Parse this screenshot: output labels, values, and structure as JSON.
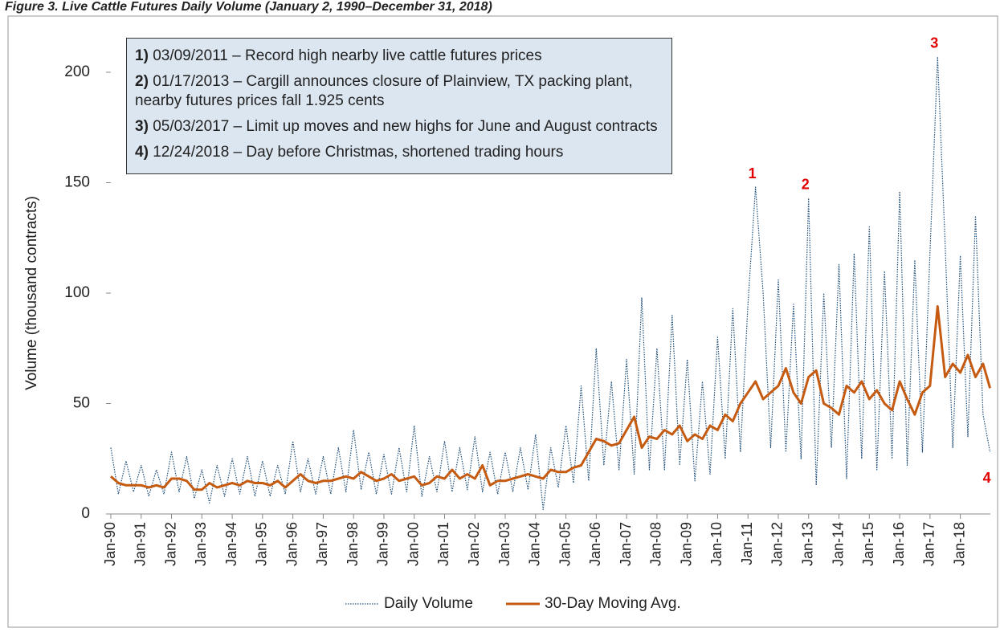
{
  "chart_data": {
    "type": "line",
    "title": "Figure 3. Live Cattle Futures Daily Volume (January 2, 1990–December 31, 2018)",
    "y_label": "Volume (thousand contracts)",
    "x": [
      1990,
      1990.25,
      1990.5,
      1990.75,
      1991,
      1991.25,
      1991.5,
      1991.75,
      1992,
      1992.25,
      1992.5,
      1992.75,
      1993,
      1993.25,
      1993.5,
      1993.75,
      1994,
      1994.25,
      1994.5,
      1994.75,
      1995,
      1995.25,
      1995.5,
      1995.75,
      1996,
      1996.25,
      1996.5,
      1996.75,
      1997,
      1997.25,
      1997.5,
      1997.75,
      1998,
      1998.25,
      1998.5,
      1998.75,
      1999,
      1999.25,
      1999.5,
      1999.75,
      2000,
      2000.25,
      2000.5,
      2000.75,
      2001,
      2001.25,
      2001.5,
      2001.75,
      2002,
      2002.25,
      2002.5,
      2002.75,
      2003,
      2003.25,
      2003.5,
      2003.75,
      2004,
      2004.25,
      2004.5,
      2004.75,
      2005,
      2005.25,
      2005.5,
      2005.75,
      2006,
      2006.25,
      2006.5,
      2006.75,
      2007,
      2007.25,
      2007.5,
      2007.75,
      2008,
      2008.25,
      2008.5,
      2008.75,
      2009,
      2009.25,
      2009.5,
      2009.75,
      2010,
      2010.25,
      2010.5,
      2010.75,
      2011,
      2011.25,
      2011.5,
      2011.75,
      2012,
      2012.25,
      2012.5,
      2012.75,
      2013,
      2013.25,
      2013.5,
      2013.75,
      2014,
      2014.25,
      2014.5,
      2014.75,
      2015,
      2015.25,
      2015.5,
      2015.75,
      2016,
      2016.25,
      2016.5,
      2016.75,
      2017,
      2017.25,
      2017.5,
      2017.75,
      2018,
      2018.25,
      2018.5,
      2018.75,
      2018.98
    ],
    "series": [
      {
        "name": "Daily Volume",
        "color": "#1f4e79",
        "values": [
          30,
          9,
          24,
          10,
          22,
          8,
          20,
          9,
          28,
          10,
          26,
          7,
          20,
          5,
          22,
          8,
          25,
          9,
          26,
          8,
          24,
          8,
          22,
          9,
          33,
          10,
          25,
          9,
          26,
          9,
          30,
          10,
          38,
          11,
          28,
          9,
          27,
          9,
          30,
          10,
          40,
          8,
          26,
          10,
          33,
          10,
          30,
          11,
          35,
          10,
          28,
          9,
          28,
          10,
          30,
          11,
          36,
          2,
          30,
          12,
          40,
          14,
          58,
          15,
          75,
          22,
          60,
          20,
          70,
          18,
          98,
          20,
          75,
          20,
          90,
          22,
          70,
          15,
          60,
          18,
          80,
          25,
          93,
          28,
          95,
          148,
          100,
          30,
          106,
          28,
          95,
          25,
          143,
          13,
          100,
          30,
          113,
          16,
          118,
          25,
          130,
          20,
          110,
          25,
          146,
          22,
          115,
          28,
          118,
          207,
          122,
          30,
          117,
          35,
          135,
          45,
          28
        ]
      },
      {
        "name": "30-Day Moving Avg.",
        "color": "#c55a11",
        "values": [
          17,
          14,
          13,
          13,
          13,
          12,
          13,
          12,
          16,
          16,
          15,
          11,
          11,
          14,
          12,
          13,
          14,
          13,
          15,
          14,
          14,
          13,
          15,
          12,
          15,
          18,
          15,
          14,
          15,
          15,
          16,
          17,
          16,
          19,
          17,
          15,
          16,
          18,
          15,
          16,
          17,
          13,
          14,
          17,
          16,
          20,
          16,
          18,
          16,
          22,
          13,
          15,
          15,
          16,
          17,
          18,
          17,
          16,
          20,
          19,
          19,
          21,
          22,
          28,
          34,
          33,
          31,
          32,
          38,
          44,
          30,
          35,
          34,
          38,
          36,
          40,
          33,
          36,
          34,
          40,
          38,
          45,
          42,
          50,
          55,
          60,
          52,
          55,
          58,
          66,
          55,
          50,
          62,
          65,
          50,
          48,
          45,
          58,
          55,
          60,
          52,
          56,
          50,
          47,
          60,
          52,
          45,
          55,
          58,
          94,
          62,
          68,
          64,
          72,
          62,
          68,
          57
        ]
      }
    ],
    "xlim": [
      1990,
      2018.99
    ],
    "xticks": [
      {
        "value": 1990,
        "label": "Jan-90"
      },
      {
        "value": 1991,
        "label": "Jan-91"
      },
      {
        "value": 1992,
        "label": "Jan-92"
      },
      {
        "value": 1993,
        "label": "Jan-93"
      },
      {
        "value": 1994,
        "label": "Jan-94"
      },
      {
        "value": 1995,
        "label": "Jan-95"
      },
      {
        "value": 1996,
        "label": "Jan-96"
      },
      {
        "value": 1997,
        "label": "Jan-97"
      },
      {
        "value": 1998,
        "label": "Jan-98"
      },
      {
        "value": 1999,
        "label": "Jan-99"
      },
      {
        "value": 2000,
        "label": "Jan-00"
      },
      {
        "value": 2001,
        "label": "Jan-01"
      },
      {
        "value": 2002,
        "label": "Jan-02"
      },
      {
        "value": 2003,
        "label": "Jan-03"
      },
      {
        "value": 2004,
        "label": "Jan-04"
      },
      {
        "value": 2005,
        "label": "Jan-05"
      },
      {
        "value": 2006,
        "label": "Jan-06"
      },
      {
        "value": 2007,
        "label": "Jan-07"
      },
      {
        "value": 2008,
        "label": "Jan-08"
      },
      {
        "value": 2009,
        "label": "Jan-09"
      },
      {
        "value": 2010,
        "label": "Jan-10"
      },
      {
        "value": 2011,
        "label": "Jan-11"
      },
      {
        "value": 2012,
        "label": "Jan-12"
      },
      {
        "value": 2013,
        "label": "Jan-13"
      },
      {
        "value": 2014,
        "label": "Jan-14"
      },
      {
        "value": 2015,
        "label": "Jan-15"
      },
      {
        "value": 2016,
        "label": "Jan-16"
      },
      {
        "value": 2017,
        "label": "Jan-17"
      },
      {
        "value": 2018,
        "label": "Jan-18"
      }
    ],
    "ylim": [
      0,
      220
    ],
    "yticks": [
      0,
      50,
      100,
      150,
      200
    ],
    "grid": false,
    "legend": "bottom",
    "markers": [
      {
        "label": "1",
        "x": 2011.25,
        "y": 148
      },
      {
        "label": "2",
        "x": 2013,
        "y": 143
      },
      {
        "label": "3",
        "x": 2017.25,
        "y": 207
      },
      {
        "label": "4",
        "x": 2018.98,
        "y": 28
      }
    ],
    "notes": [
      {
        "num": "1)",
        "text": "03/09/2011  – Record high nearby live cattle futures prices"
      },
      {
        "num": "2)",
        "text": "01/17/2013  – Cargill announces closure of Plainview, TX packing plant, nearby futures prices fall 1.925 cents"
      },
      {
        "num": "3)",
        "text": "05/03/2017  – Limit up moves and new highs for June and August contracts"
      },
      {
        "num": "4)",
        "text": "12/24/2018  – Day before Christmas, shortened trading hours"
      }
    ]
  }
}
